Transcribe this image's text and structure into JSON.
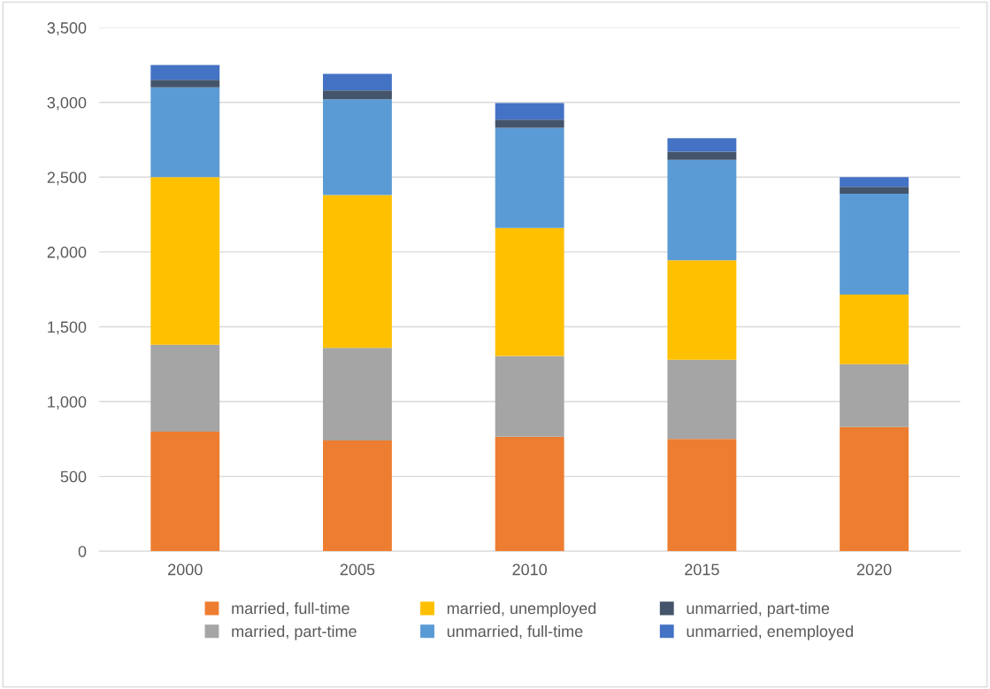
{
  "chart_data": {
    "type": "bar",
    "stacked": true,
    "categories": [
      "2000",
      "2005",
      "2010",
      "2015",
      "2020"
    ],
    "series": [
      {
        "name": "married, full-time",
        "color": "#ed7d31",
        "values": [
          800,
          740,
          765,
          750,
          830
        ]
      },
      {
        "name": "married, part-time",
        "color": "#a5a5a5",
        "values": [
          580,
          620,
          540,
          530,
          420
        ]
      },
      {
        "name": "married, unemployed",
        "color": "#ffc000",
        "values": [
          1120,
          1020,
          855,
          665,
          465
        ]
      },
      {
        "name": "unmarried, full-time",
        "color": "#5b9bd5",
        "values": [
          600,
          640,
          670,
          670,
          675
        ]
      },
      {
        "name": "unmarried, part-time",
        "color": "#44546a",
        "values": [
          50,
          60,
          55,
          55,
          45
        ]
      },
      {
        "name": "unmarried, enemployed",
        "color": "#4472c4",
        "values": [
          100,
          110,
          110,
          90,
          65
        ]
      }
    ],
    "ylim": [
      0,
      3500
    ],
    "yticks": [
      {
        "value": 0,
        "label": "0"
      },
      {
        "value": 500,
        "label": "500"
      },
      {
        "value": 1000,
        "label": "1,000"
      },
      {
        "value": 1500,
        "label": "1,500"
      },
      {
        "value": 2000,
        "label": "2,000"
      },
      {
        "value": 2500,
        "label": "2,500"
      },
      {
        "value": 3000,
        "label": "3,000"
      },
      {
        "value": 3500,
        "label": "3,500"
      }
    ],
    "grid": "y",
    "legend": "bottom"
  }
}
